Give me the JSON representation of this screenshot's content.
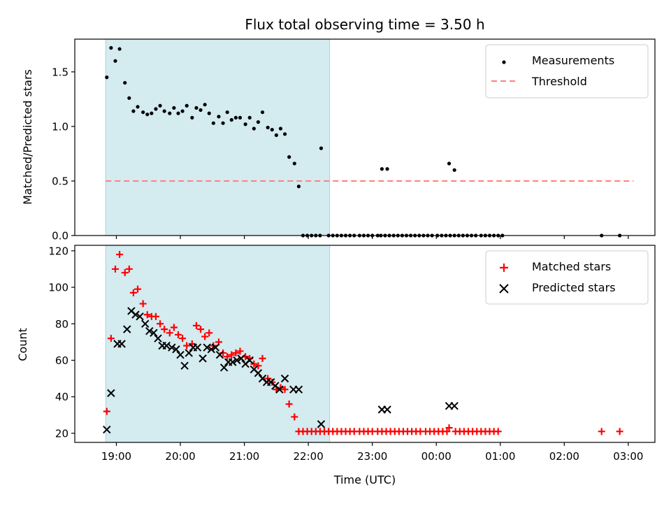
{
  "chart_data": {
    "type": "scatter",
    "title": "Flux total observing time = 3.50 h",
    "xlabel": "Time (UTC)",
    "x_ticks": [
      "19:00",
      "20:00",
      "21:00",
      "22:00",
      "23:00",
      "00:00",
      "01:00",
      "02:00",
      "03:00"
    ],
    "observing_window": {
      "start": "18:50",
      "end": "22:20",
      "color": "#d4ebf0"
    },
    "panels": [
      {
        "ylabel": "Matched/Predicted stars",
        "ylim": [
          0,
          1.8
        ],
        "yticks": [
          "0.0",
          "0.5",
          "1.0",
          "1.5"
        ],
        "legend": "top-right",
        "threshold": {
          "name": "Threshold",
          "value": 0.5,
          "from": "18:50",
          "to": "03:05",
          "color": "#ff7f7f"
        },
        "series": [
          {
            "name": "Measurements",
            "marker": "dot",
            "color": "#000000",
            "points": [
              [
                "18:51",
                1.45
              ],
              [
                "18:55",
                1.72
              ],
              [
                "18:59",
                1.6
              ],
              [
                "19:03",
                1.71
              ],
              [
                "19:08",
                1.4
              ],
              [
                "19:12",
                1.26
              ],
              [
                "19:16",
                1.14
              ],
              [
                "19:20",
                1.18
              ],
              [
                "19:25",
                1.13
              ],
              [
                "19:29",
                1.11
              ],
              [
                "19:33",
                1.12
              ],
              [
                "19:37",
                1.16
              ],
              [
                "19:41",
                1.19
              ],
              [
                "19:45",
                1.14
              ],
              [
                "19:50",
                1.12
              ],
              [
                "19:54",
                1.17
              ],
              [
                "19:58",
                1.12
              ],
              [
                "20:02",
                1.14
              ],
              [
                "20:06",
                1.19
              ],
              [
                "20:11",
                1.08
              ],
              [
                "20:15",
                1.17
              ],
              [
                "20:19",
                1.15
              ],
              [
                "20:23",
                1.2
              ],
              [
                "20:27",
                1.12
              ],
              [
                "20:31",
                1.03
              ],
              [
                "20:36",
                1.09
              ],
              [
                "20:40",
                1.03
              ],
              [
                "20:44",
                1.13
              ],
              [
                "20:48",
                1.06
              ],
              [
                "20:52",
                1.08
              ],
              [
                "20:56",
                1.08
              ],
              [
                "21:01",
                1.02
              ],
              [
                "21:05",
                1.08
              ],
              [
                "21:09",
                0.98
              ],
              [
                "21:13",
                1.04
              ],
              [
                "21:17",
                1.13
              ],
              [
                "21:22",
                0.99
              ],
              [
                "21:26",
                0.97
              ],
              [
                "21:30",
                0.92
              ],
              [
                "21:34",
                0.98
              ],
              [
                "21:38",
                0.93
              ],
              [
                "21:42",
                0.72
              ],
              [
                "21:47",
                0.66
              ],
              [
                "21:51",
                0.45
              ],
              [
                "21:55",
                0
              ],
              [
                "21:59",
                0
              ],
              [
                "22:03",
                0
              ],
              [
                "22:07",
                0
              ],
              [
                "22:11",
                0
              ],
              [
                "22:19",
                0
              ],
              [
                "22:23",
                0
              ],
              [
                "22:27",
                0
              ],
              [
                "22:31",
                0
              ],
              [
                "22:35",
                0
              ],
              [
                "22:39",
                0
              ],
              [
                "22:43",
                0
              ],
              [
                "22:48",
                0
              ],
              [
                "22:52",
                0
              ],
              [
                "22:56",
                0
              ],
              [
                "23:00",
                0
              ],
              [
                "23:05",
                0
              ],
              [
                "23:08",
                0
              ],
              [
                "23:12",
                0
              ],
              [
                "23:16",
                0
              ],
              [
                "23:20",
                0
              ],
              [
                "23:24",
                0
              ],
              [
                "23:28",
                0
              ],
              [
                "23:32",
                0
              ],
              [
                "23:36",
                0
              ],
              [
                "23:40",
                0
              ],
              [
                "23:44",
                0
              ],
              [
                "23:48",
                0
              ],
              [
                "23:52",
                0
              ],
              [
                "23:56",
                0
              ],
              [
                "00:01",
                0
              ],
              [
                "00:05",
                0
              ],
              [
                "00:09",
                0
              ],
              [
                "00:13",
                0
              ],
              [
                "00:17",
                0
              ],
              [
                "00:21",
                0
              ],
              [
                "00:25",
                0
              ],
              [
                "00:29",
                0
              ],
              [
                "00:33",
                0
              ],
              [
                "00:37",
                0
              ],
              [
                "00:42",
                0
              ],
              [
                "00:46",
                0
              ],
              [
                "00:50",
                0
              ],
              [
                "00:54",
                0
              ],
              [
                "00:58",
                0
              ],
              [
                "01:02",
                0
              ],
              [
                "02:35",
                0
              ],
              [
                "02:52",
                0
              ],
              [
                "22:12",
                0.8
              ],
              [
                "23:09",
                0.61
              ],
              [
                "23:14",
                0.61
              ],
              [
                "00:12",
                0.66
              ],
              [
                "00:17",
                0.6
              ]
            ]
          }
        ]
      },
      {
        "ylabel": "Count",
        "ylim": [
          15,
          123
        ],
        "yticks": [
          "20",
          "40",
          "60",
          "80",
          "100",
          "120"
        ],
        "legend": "top-right",
        "series": [
          {
            "name": "Matched stars",
            "marker": "plus",
            "color": "#ff0000",
            "points": [
              [
                "18:51",
                32
              ],
              [
                "18:55",
                72
              ],
              [
                "18:59",
                110
              ],
              [
                "19:03",
                118
              ],
              [
                "19:08",
                108
              ],
              [
                "19:12",
                110
              ],
              [
                "19:16",
                97
              ],
              [
                "19:20",
                99
              ],
              [
                "19:25",
                91
              ],
              [
                "19:29",
                85
              ],
              [
                "19:33",
                84
              ],
              [
                "19:37",
                84
              ],
              [
                "19:41",
                80
              ],
              [
                "19:45",
                77
              ],
              [
                "19:50",
                75
              ],
              [
                "19:54",
                78
              ],
              [
                "19:58",
                74
              ],
              [
                "20:02",
                72
              ],
              [
                "20:06",
                68
              ],
              [
                "20:11",
                69
              ],
              [
                "20:15",
                79
              ],
              [
                "20:19",
                77
              ],
              [
                "20:23",
                73
              ],
              [
                "20:27",
                75
              ],
              [
                "20:31",
                68
              ],
              [
                "20:36",
                70
              ],
              [
                "20:40",
                64
              ],
              [
                "20:44",
                62
              ],
              [
                "20:48",
                63
              ],
              [
                "20:52",
                64
              ],
              [
                "20:56",
                65
              ],
              [
                "21:01",
                62
              ],
              [
                "21:05",
                61
              ],
              [
                "21:09",
                58
              ],
              [
                "21:13",
                57
              ],
              [
                "21:17",
                61
              ],
              [
                "21:22",
                50
              ],
              [
                "21:26",
                48
              ],
              [
                "21:30",
                44
              ],
              [
                "21:34",
                45
              ],
              [
                "21:38",
                44
              ],
              [
                "21:42",
                36
              ],
              [
                "21:47",
                29
              ],
              [
                "21:51",
                21
              ],
              [
                "21:55",
                21
              ],
              [
                "21:59",
                21
              ],
              [
                "22:03",
                21
              ],
              [
                "22:07",
                21
              ],
              [
                "22:11",
                21
              ],
              [
                "22:15",
                21
              ],
              [
                "22:19",
                21
              ],
              [
                "22:23",
                21
              ],
              [
                "22:27",
                21
              ],
              [
                "22:31",
                21
              ],
              [
                "22:35",
                21
              ],
              [
                "22:39",
                21
              ],
              [
                "22:43",
                21
              ],
              [
                "22:48",
                21
              ],
              [
                "22:52",
                21
              ],
              [
                "22:56",
                21
              ],
              [
                "23:00",
                21
              ],
              [
                "23:05",
                21
              ],
              [
                "23:09",
                21
              ],
              [
                "23:13",
                21
              ],
              [
                "23:17",
                21
              ],
              [
                "23:21",
                21
              ],
              [
                "23:25",
                21
              ],
              [
                "23:29",
                21
              ],
              [
                "23:33",
                21
              ],
              [
                "23:37",
                21
              ],
              [
                "23:41",
                21
              ],
              [
                "23:45",
                21
              ],
              [
                "23:50",
                21
              ],
              [
                "23:54",
                21
              ],
              [
                "23:58",
                21
              ],
              [
                "00:02",
                21
              ],
              [
                "00:06",
                21
              ],
              [
                "00:10",
                21
              ],
              [
                "00:12",
                23
              ],
              [
                "00:18",
                21
              ],
              [
                "00:22",
                21
              ],
              [
                "00:26",
                21
              ],
              [
                "00:30",
                21
              ],
              [
                "00:34",
                21
              ],
              [
                "00:38",
                21
              ],
              [
                "00:42",
                21
              ],
              [
                "00:46",
                21
              ],
              [
                "00:50",
                21
              ],
              [
                "00:54",
                21
              ],
              [
                "00:58",
                21
              ],
              [
                "02:35",
                21
              ],
              [
                "02:52",
                21
              ]
            ]
          },
          {
            "name": "Predicted stars",
            "marker": "cross",
            "color": "#000000",
            "points": [
              [
                "18:51",
                22
              ],
              [
                "18:55",
                42
              ],
              [
                "19:01",
                69
              ],
              [
                "19:05",
                69
              ],
              [
                "19:10",
                77
              ],
              [
                "19:14",
                87
              ],
              [
                "19:18",
                85
              ],
              [
                "19:22",
                84
              ],
              [
                "19:27",
                80
              ],
              [
                "19:31",
                76
              ],
              [
                "19:35",
                75
              ],
              [
                "19:39",
                72
              ],
              [
                "19:43",
                68
              ],
              [
                "19:47",
                68
              ],
              [
                "19:52",
                67
              ],
              [
                "19:56",
                66
              ],
              [
                "20:00",
                63
              ],
              [
                "20:04",
                57
              ],
              [
                "20:08",
                64
              ],
              [
                "20:12",
                67
              ],
              [
                "20:16",
                67
              ],
              [
                "20:21",
                61
              ],
              [
                "20:25",
                67
              ],
              [
                "20:29",
                66
              ],
              [
                "20:33",
                67
              ],
              [
                "20:37",
                63
              ],
              [
                "20:41",
                56
              ],
              [
                "20:45",
                59
              ],
              [
                "20:49",
                59
              ],
              [
                "20:53",
                60
              ],
              [
                "20:57",
                61
              ],
              [
                "21:01",
                58
              ],
              [
                "21:05",
                60
              ],
              [
                "21:09",
                55
              ],
              [
                "21:13",
                53
              ],
              [
                "21:17",
                50
              ],
              [
                "21:21",
                48
              ],
              [
                "21:25",
                48
              ],
              [
                "21:29",
                46
              ],
              [
                "21:33",
                44
              ],
              [
                "21:38",
                50
              ],
              [
                "21:46",
                44
              ],
              [
                "21:51",
                44
              ],
              [
                "22:12",
                25
              ],
              [
                "23:09",
                33
              ],
              [
                "23:14",
                33
              ],
              [
                "00:12",
                35
              ],
              [
                "00:17",
                35
              ]
            ]
          }
        ]
      }
    ]
  }
}
